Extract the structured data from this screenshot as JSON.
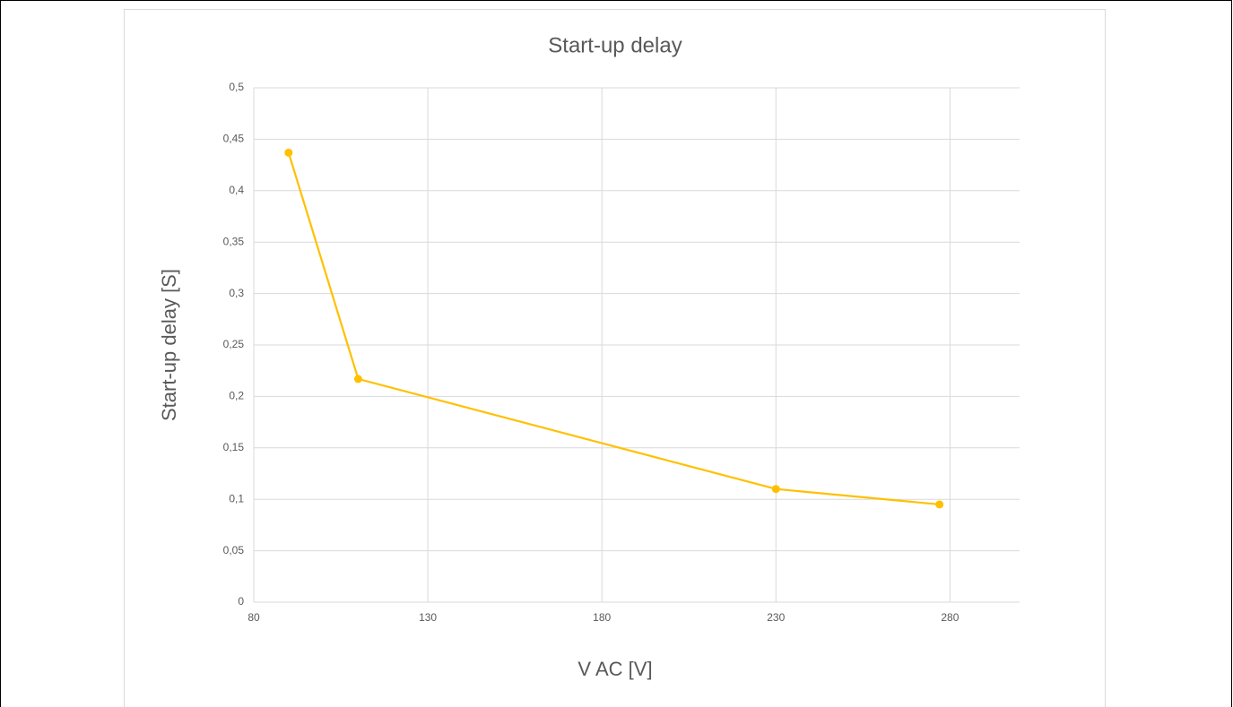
{
  "chart_data": {
    "type": "line",
    "title": "Start-up delay",
    "x_label": "V AC [V]",
    "y_label": "Start-up delay [S]",
    "x": [
      90,
      110,
      230,
      277
    ],
    "series": [
      {
        "name": "Start-up delay",
        "color": "#ffc000",
        "values": [
          0.437,
          0.217,
          0.11,
          0.095
        ]
      }
    ],
    "xlim": [
      80,
      300
    ],
    "xticks": [
      80,
      130,
      180,
      230,
      280
    ],
    "ylim": [
      0,
      0.5
    ],
    "yticks": [
      0,
      {
        "value": 0.05,
        "label": "0,05"
      },
      {
        "value": 0.1,
        "label": "0,1"
      },
      {
        "value": 0.15,
        "label": "0,15"
      },
      {
        "value": 0.2,
        "label": "0,2"
      },
      {
        "value": 0.25,
        "label": "0,25"
      },
      {
        "value": 0.3,
        "label": "0,3"
      },
      {
        "value": 0.35,
        "label": "0,35"
      },
      {
        "value": 0.4,
        "label": "0,4"
      },
      {
        "value": 0.45,
        "label": "0,45"
      },
      {
        "value": 0.5,
        "label": "0,5"
      }
    ],
    "grid": true
  }
}
